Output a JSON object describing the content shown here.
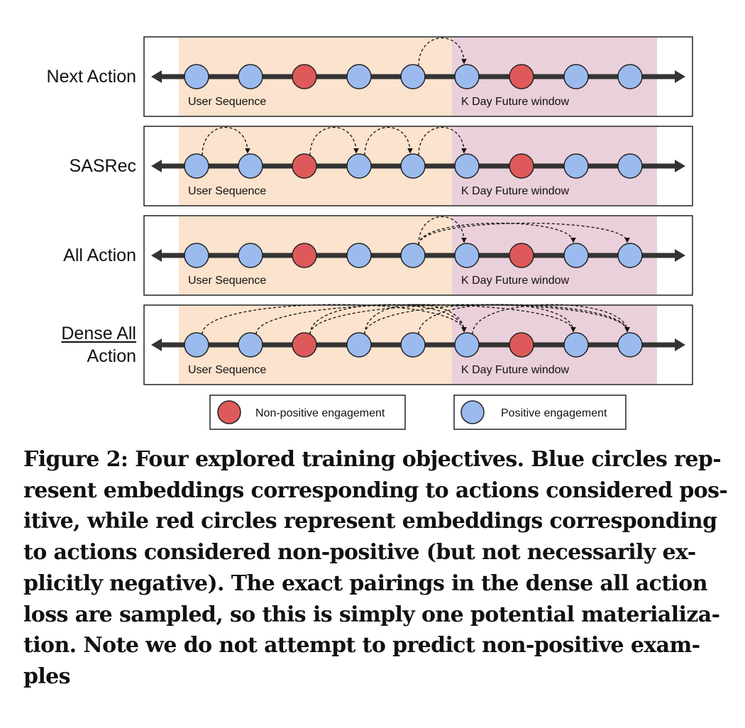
{
  "rows": [
    {
      "label": "Next Action",
      "segment_labels": {
        "left": "User Sequence",
        "right": "K Day Future window"
      }
    },
    {
      "label": "SASRec",
      "segment_labels": {
        "left": "User Sequence",
        "right": "K Day Future window"
      }
    },
    {
      "label": "All Action",
      "segment_labels": {
        "left": "User Sequence",
        "right": "K Day Future window"
      }
    },
    {
      "label_line1": "Dense All",
      "label_line2": "Action",
      "segment_labels": {
        "left": "User Sequence",
        "right": "K Day Future window"
      }
    }
  ],
  "legend": {
    "non_positive": "Non-positive engagement",
    "positive": "Positive engagement"
  },
  "colors": {
    "positive_fill": "#9bbbee",
    "non_positive_fill": "#de5a5a",
    "user_sequence_bg": "#fbe3cd",
    "future_window_bg": "#ead0da",
    "track": "#333333"
  },
  "node_sequence": [
    "positive",
    "positive",
    "non-positive",
    "positive",
    "positive",
    "positive",
    "non-positive",
    "positive",
    "positive"
  ],
  "caption_lines": [
    "Figure 2: Four explored training objectives. Blue circles rep-",
    "resent embeddings corresponding to actions considered pos-",
    "itive, while red circles represent embeddings corresponding",
    "to actions considered non-positive (but not necessarily ex-",
    "plicitly negative). The exact pairings in the dense all action",
    "loss are sampled, so this is simply one potential materializa-",
    "tion. Note we do not attempt to predict non-positive exam-",
    "ples"
  ]
}
